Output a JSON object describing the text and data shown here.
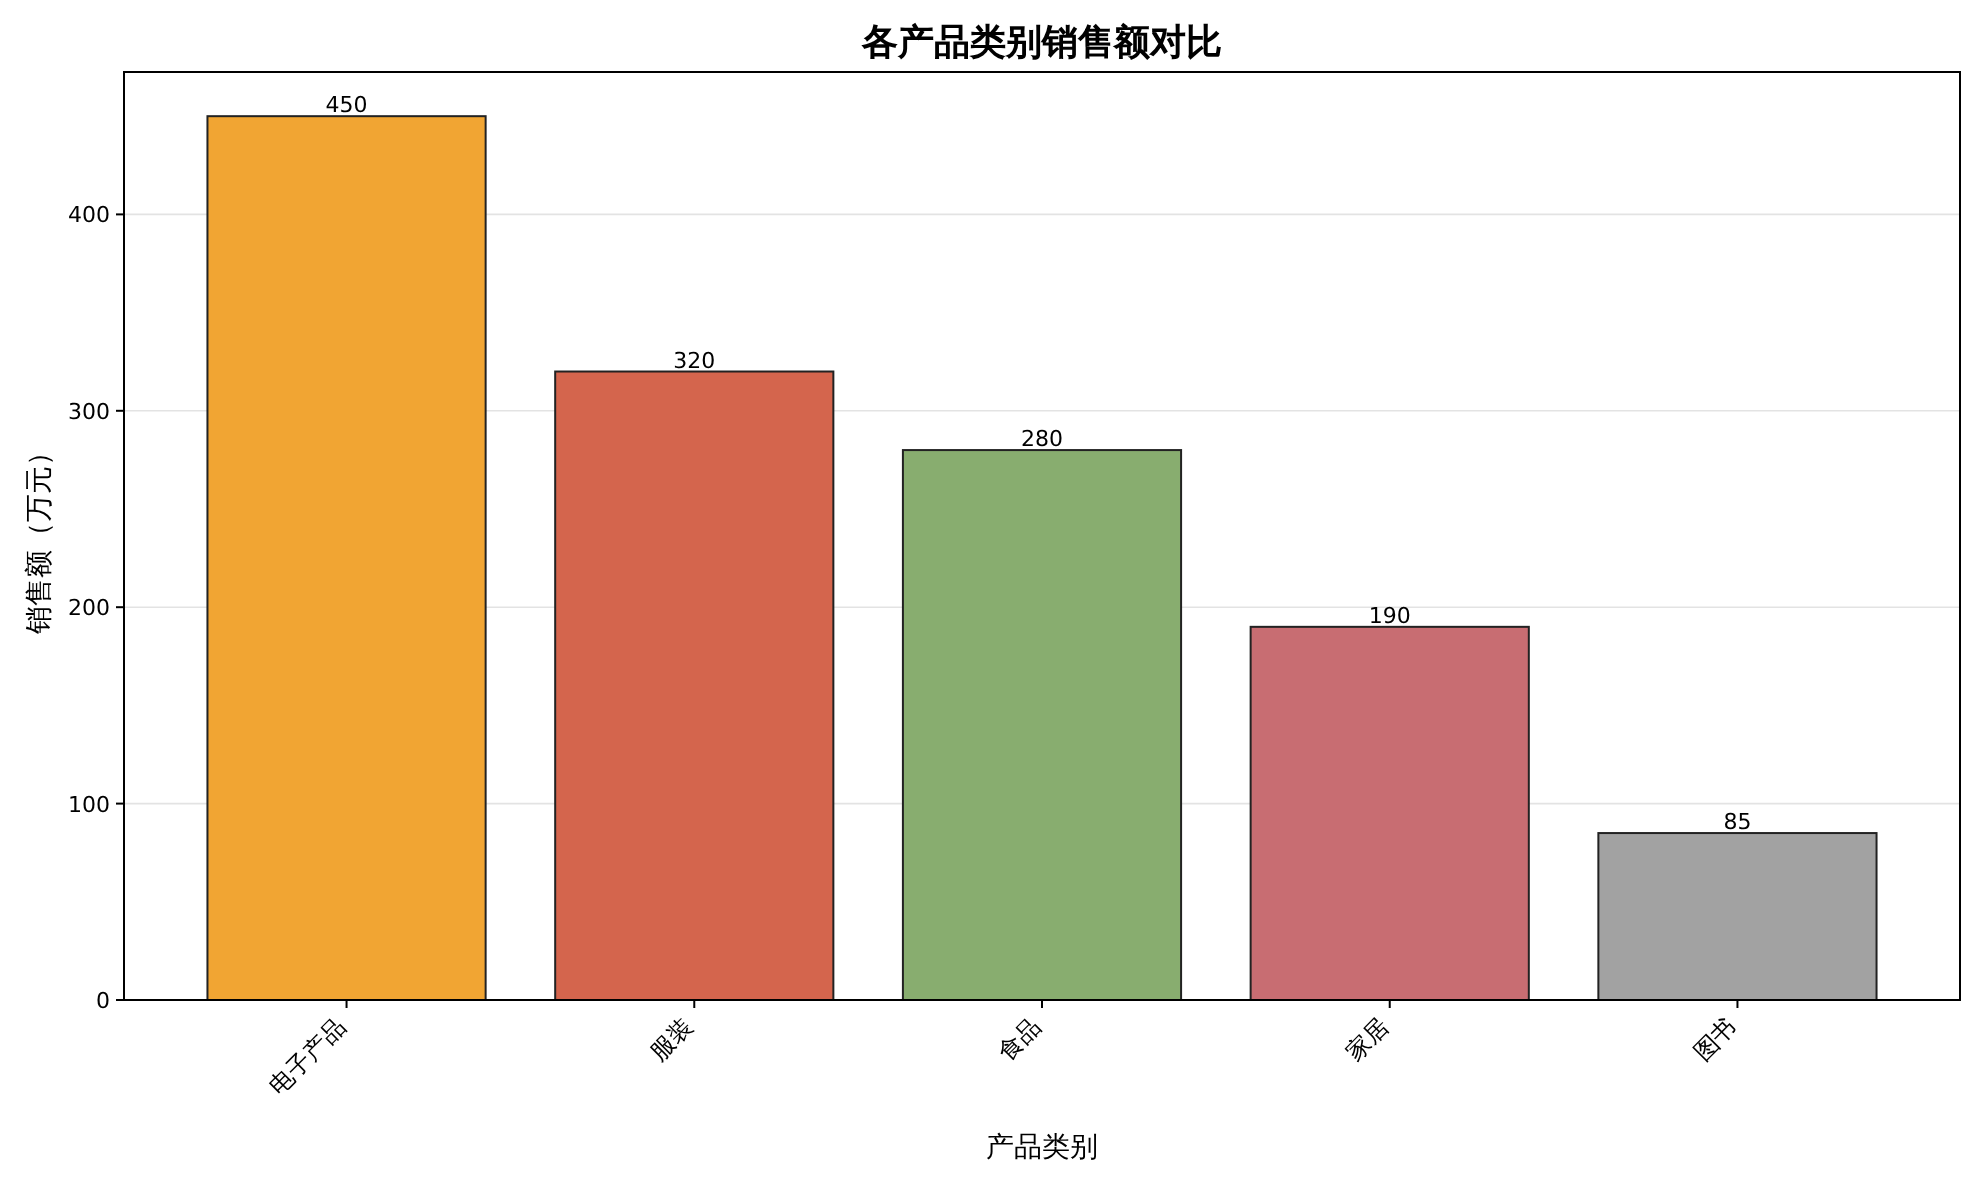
{
  "chart_data": {
    "type": "bar",
    "title": "各产品类别销售额对比",
    "xlabel": "产品类别",
    "ylabel": "销售额（万元）",
    "categories": [
      "电子产品",
      "服装",
      "食品",
      "家居",
      "图书"
    ],
    "values": [
      450,
      320,
      280,
      190,
      85
    ],
    "colors": [
      "#f1a533",
      "#d4654d",
      "#88ad6f",
      "#c86d72",
      "#a2a2a2"
    ],
    "ylim": [
      0,
      472.5
    ],
    "yticks": [
      0,
      100,
      200,
      300,
      400
    ],
    "grid": "y",
    "data_labels": true
  }
}
